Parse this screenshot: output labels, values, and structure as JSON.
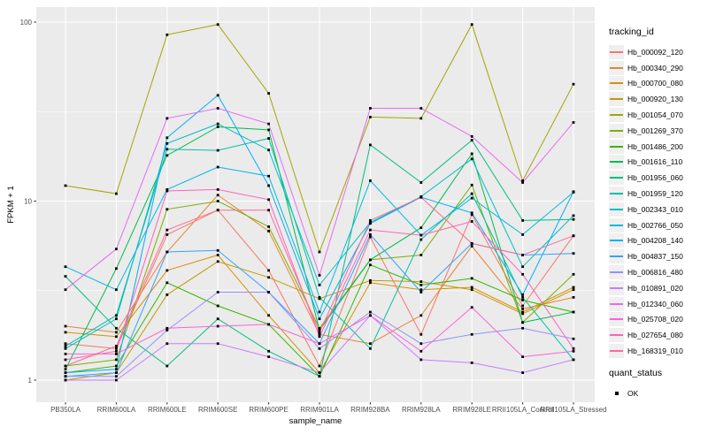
{
  "chart_data": {
    "type": "line",
    "title": "",
    "xlabel": "sample_name",
    "ylabel": "FPKM + 1",
    "y_scale": "log10",
    "y_ticks": [
      "1",
      "10",
      "100"
    ],
    "ylim": [
      0.93,
      115
    ],
    "grid": true,
    "legend_position": "right",
    "categories": [
      "PB350LA",
      "RRIM600LA",
      "RRIM600LE",
      "RRIM600SE",
      "RRIM600PE",
      "RRIM901LA",
      "RRIM928BA",
      "RRIM928LA",
      "RRIM928LE",
      "RRII105LA_Control",
      "RRII105LA_Stressed"
    ],
    "series": [
      {
        "name": "Hb_000092_120",
        "color": "#F8766D",
        "values": [
          1.6,
          1.5,
          6.5,
          8.9,
          4.1,
          1.2,
          6.3,
          1.8,
          8.4,
          2.6,
          6.4
        ]
      },
      {
        "name": "Hb_000340_290",
        "color": "#EA8331",
        "values": [
          2.0,
          1.85,
          5.2,
          10.8,
          6.8,
          1.8,
          1.6,
          2.3,
          5.6,
          2.5,
          2.9
        ]
      },
      {
        "name": "Hb_000700_080",
        "color": "#D89000",
        "values": [
          1.85,
          1.75,
          4.1,
          5.0,
          2.3,
          1.1,
          3.5,
          3.2,
          3.3,
          2.4,
          3.3
        ]
      },
      {
        "name": "Hb_000920_130",
        "color": "#C09B00",
        "values": [
          1.0,
          1.1,
          3.0,
          4.6,
          3.75,
          2.85,
          3.6,
          3.55,
          3.2,
          2.35,
          3.2
        ]
      },
      {
        "name": "Hb_001054_070",
        "color": "#A3A500",
        "values": [
          12.2,
          11.0,
          85.0,
          97.0,
          40.0,
          5.2,
          29.5,
          29.0,
          97.0,
          13.0,
          45.0
        ]
      },
      {
        "name": "Hb_001269_370",
        "color": "#7CAE00",
        "values": [
          1.2,
          1.3,
          9.0,
          10.0,
          7.2,
          1.95,
          4.7,
          5.0,
          12.3,
          2.1,
          3.9
        ]
      },
      {
        "name": "Hb_001486_200",
        "color": "#39B600",
        "values": [
          1.1,
          1.2,
          3.5,
          2.6,
          2.05,
          1.05,
          4.4,
          3.4,
          3.7,
          2.8,
          2.4
        ]
      },
      {
        "name": "Hb_001616_110",
        "color": "#00BB4E",
        "values": [
          1.15,
          4.2,
          18.0,
          26.0,
          25.0,
          1.9,
          4.7,
          7.1,
          18.4,
          2.1,
          2.4
        ]
      },
      {
        "name": "Hb_001956_060",
        "color": "#00BF7D",
        "values": [
          3.8,
          1.95,
          1.2,
          2.2,
          1.45,
          1.05,
          20.6,
          12.7,
          21.9,
          7.8,
          7.9
        ]
      },
      {
        "name": "Hb_001959_120",
        "color": "#00C1A3",
        "values": [
          1.55,
          2.3,
          19.5,
          19.2,
          22.4,
          2.9,
          1.5,
          6.1,
          11.0,
          2.9,
          1.3
        ]
      },
      {
        "name": "Hb_002343_010",
        "color": "#00BFC4",
        "values": [
          1.5,
          2.2,
          21.0,
          27.0,
          19.3,
          3.4,
          7.6,
          10.6,
          17.2,
          4.3,
          8.3
        ]
      },
      {
        "name": "Hb_002766_050",
        "color": "#00BAE0",
        "values": [
          4.3,
          3.2,
          11.6,
          15.5,
          13.8,
          2.4,
          13.0,
          6.45,
          10.4,
          6.5,
          11.2
        ]
      },
      {
        "name": "Hb_004208_140",
        "color": "#00B0F6",
        "values": [
          1.1,
          1.15,
          22.6,
          39.0,
          12.2,
          2.2,
          7.5,
          10.5,
          8.6,
          3.0,
          11.3
        ]
      },
      {
        "name": "Hb_004837_150",
        "color": "#35A2FF",
        "values": [
          1.05,
          1.1,
          5.2,
          5.3,
          3.1,
          1.6,
          6.5,
          3.1,
          5.8,
          5.0,
          5.1
        ]
      },
      {
        "name": "Hb_006816_480",
        "color": "#9590FF",
        "values": [
          1.05,
          1.05,
          1.9,
          3.1,
          3.1,
          1.5,
          2.4,
          1.6,
          1.8,
          1.95,
          1.7
        ]
      },
      {
        "name": "Hb_010891_020",
        "color": "#C77CFF",
        "values": [
          1.0,
          1.0,
          1.6,
          1.6,
          1.35,
          1.1,
          2.3,
          1.3,
          1.25,
          1.1,
          1.3
        ]
      },
      {
        "name": "Hb_012340_060",
        "color": "#E76BF3",
        "values": [
          3.2,
          5.4,
          29.0,
          33.0,
          27.0,
          3.85,
          33.0,
          33.0,
          23.0,
          12.7,
          27.5
        ]
      },
      {
        "name": "Hb_025708_020",
        "color": "#FA62DB",
        "values": [
          1.4,
          1.4,
          1.95,
          2.0,
          2.05,
          1.6,
          2.3,
          1.45,
          2.55,
          1.35,
          1.45
        ]
      },
      {
        "name": "Hb_027654_080",
        "color": "#FF62BC",
        "values": [
          1.3,
          1.45,
          11.4,
          11.6,
          10.2,
          1.75,
          6.9,
          6.45,
          7.7,
          3.9,
          1.5
        ]
      },
      {
        "name": "Hb_168319_010",
        "color": "#FF6A98",
        "values": [
          1.2,
          1.55,
          6.9,
          8.9,
          8.9,
          1.85,
          7.8,
          10.5,
          5.8,
          5.0,
          6.4
        ]
      }
    ],
    "point_marker": {
      "shape": "square",
      "color": "#000000"
    }
  },
  "legend": {
    "tracking_title": "tracking_id",
    "quant_title": "quant_status",
    "quant_items": [
      {
        "label": "OK"
      }
    ]
  },
  "colors": {
    "panel_background": "#EBEBEB",
    "gridline": "#FFFFFF",
    "tick_label": "#4D4D4D",
    "axis_title": "#000000",
    "marker": "#000000",
    "legend_key_background": "#EFEFEF"
  }
}
